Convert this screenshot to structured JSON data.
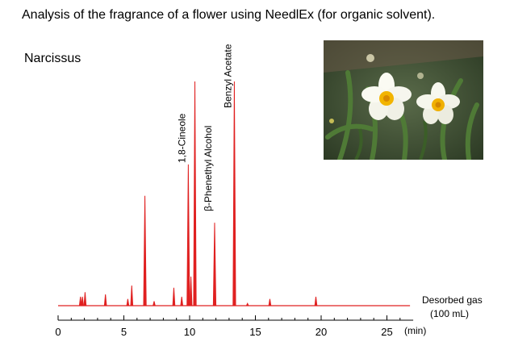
{
  "title": "Analysis of the fragrance of a flower using NeedlEx (for organic solvent).",
  "sample": "Narcissus",
  "photo": {
    "subject": "narcissus-flowers"
  },
  "chart_data": {
    "type": "line",
    "xlim": [
      0,
      27
    ],
    "ylim": [
      0,
      100
    ],
    "xticks": [
      0,
      5,
      10,
      15,
      20,
      25
    ],
    "xunit": "(min)",
    "series_color": "#e02020",
    "trace_label_line1": "Desorbed gas",
    "trace_label_line2": "(100 mL)",
    "peaks": [
      {
        "x": 1.7,
        "h": 4
      },
      {
        "x": 1.85,
        "h": 4
      },
      {
        "x": 2.05,
        "h": 6
      },
      {
        "x": 3.6,
        "h": 5
      },
      {
        "x": 5.3,
        "h": 3
      },
      {
        "x": 5.6,
        "h": 9
      },
      {
        "x": 6.6,
        "h": 49
      },
      {
        "x": 7.3,
        "h": 2
      },
      {
        "x": 8.8,
        "h": 8
      },
      {
        "x": 9.4,
        "h": 4
      },
      {
        "x": 9.9,
        "h": 63
      },
      {
        "x": 10.1,
        "h": 13
      },
      {
        "x": 10.4,
        "h": 100
      },
      {
        "x": 11.9,
        "h": 37
      },
      {
        "x": 13.4,
        "h": 100
      },
      {
        "x": 14.4,
        "h": 1
      },
      {
        "x": 16.1,
        "h": 3
      },
      {
        "x": 19.6,
        "h": 4
      }
    ],
    "peak_labels": [
      {
        "x": 9.9,
        "text": "1,8-Cineole"
      },
      {
        "x": 11.9,
        "text": "β-Phenethyl  Alcohol"
      },
      {
        "x": 13.4,
        "text": "Benzyl Acetate"
      }
    ]
  }
}
